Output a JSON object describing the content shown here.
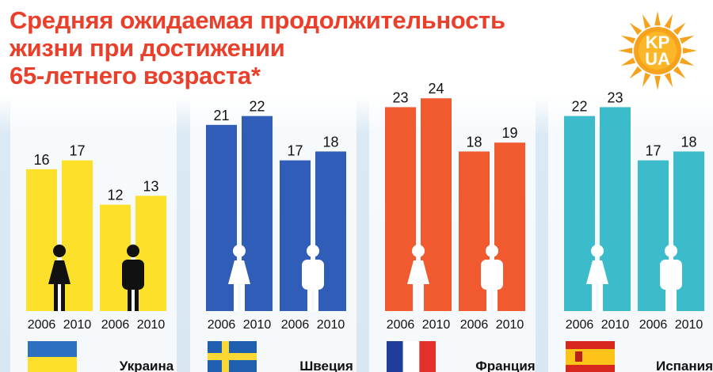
{
  "title": {
    "line1": "Средняя ожидаемая продолжительность",
    "line2": "жизни при достижении",
    "line3": "65-летнего возраста*"
  },
  "logo": {
    "line1": "KP",
    "line2": "UA"
  },
  "colors": {
    "title": "#ea3f2b",
    "ukraine": "#fde02a",
    "sweden": "#2f5db8",
    "france": "#f15a2f",
    "spain": "#3cbccb",
    "logo_sun": "#f7a21c"
  },
  "chart_data": {
    "type": "bar",
    "title": "Средняя ожидаемая продолжительность жизни при достижении 65-летнего возраста*",
    "ylabel": "",
    "ylim": [
      0,
      25
    ],
    "groups": [
      {
        "name": "Украина",
        "color": "#fde02a",
        "bars": [
          {
            "sex": "female",
            "year": "2006",
            "value": 16
          },
          {
            "sex": "female",
            "year": "2010",
            "value": 17
          },
          {
            "sex": "male",
            "year": "2006",
            "value": 12
          },
          {
            "sex": "male",
            "year": "2010",
            "value": 13
          }
        ]
      },
      {
        "name": "Швеция",
        "color": "#2f5db8",
        "bars": [
          {
            "sex": "female",
            "year": "2006",
            "value": 21
          },
          {
            "sex": "female",
            "year": "2010",
            "value": 22
          },
          {
            "sex": "male",
            "year": "2006",
            "value": 17
          },
          {
            "sex": "male",
            "year": "2010",
            "value": 18
          }
        ]
      },
      {
        "name": "Франция",
        "color": "#f15a2f",
        "bars": [
          {
            "sex": "female",
            "year": "2006",
            "value": 23
          },
          {
            "sex": "female",
            "year": "2010",
            "value": 24
          },
          {
            "sex": "male",
            "year": "2006",
            "value": 18
          },
          {
            "sex": "male",
            "year": "2010",
            "value": 19
          }
        ]
      },
      {
        "name": "Испания",
        "color": "#3cbccb",
        "bars": [
          {
            "sex": "female",
            "year": "2006",
            "value": 22
          },
          {
            "sex": "female",
            "year": "2010",
            "value": 23
          },
          {
            "sex": "male",
            "year": "2006",
            "value": 17
          },
          {
            "sex": "male",
            "year": "2010",
            "value": 18
          }
        ]
      }
    ]
  }
}
